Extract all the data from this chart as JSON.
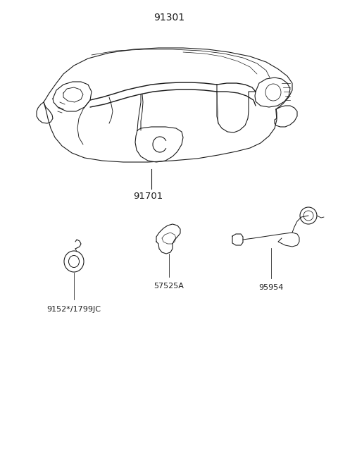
{
  "title": "91301",
  "bg_color": "#ffffff",
  "label_91701": "91701",
  "label_9152": "9152*/1799JC",
  "label_57525": "57525A",
  "label_95954": "95954",
  "font_size_title": 10,
  "font_size_labels": 8,
  "fig_width": 4.8,
  "fig_height": 6.57,
  "dpi": 100
}
